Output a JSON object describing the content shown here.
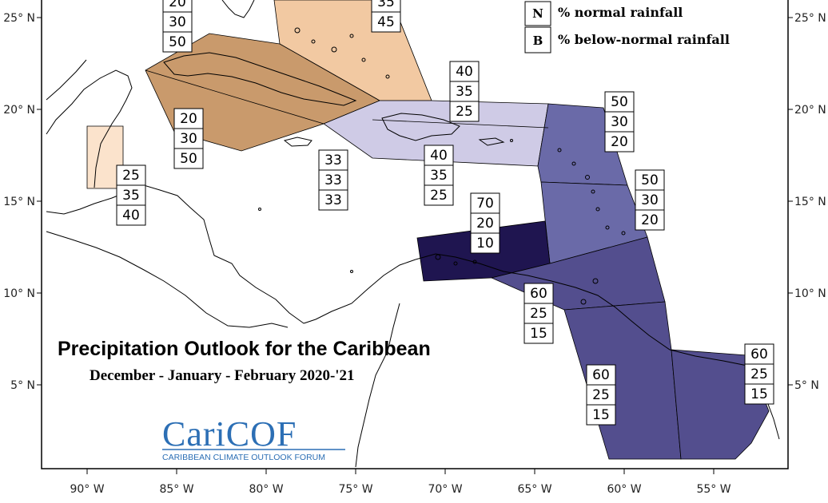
{
  "title": "Precipitation Outlook for the Caribbean",
  "subtitle": "December - January - February 2020-'21",
  "legend": [
    {
      "letter": "N",
      "text": "% normal rainfall"
    },
    {
      "letter": "B",
      "text": "% below-normal rainfall"
    }
  ],
  "logo": {
    "name": "CariCOF",
    "tagline": "CARIBBEAN CLIMATE OUTLOOK FORUM"
  },
  "axes": {
    "lon_labels": [
      "90° W",
      "85° W",
      "80° W",
      "75° W",
      "70° W",
      "65° W",
      "60° W",
      "55° W"
    ],
    "lat_labels": [
      "25° N",
      "20° N",
      "15° N",
      "10° N",
      "5° N"
    ]
  },
  "colors": {
    "tan_light": "#f2c9a2",
    "tan_dark": "#c99a6c",
    "peach_pale": "#fbe3cc",
    "lavender_light": "#cfcbe6",
    "purple_mid": "#6a6aa8",
    "purple_dark": "#534e8e",
    "navy": "#1f1550"
  },
  "probability_boxes": [
    {
      "region": "bahamas-north",
      "values": [
        "20",
        "30",
        "50"
      ]
    },
    {
      "region": "bahamas-east",
      "values": [
        "35",
        "45"
      ]
    },
    {
      "region": "cuba-south",
      "values": [
        "20",
        "30",
        "50"
      ]
    },
    {
      "region": "hispaniola-north",
      "values": [
        "40",
        "35",
        "25"
      ]
    },
    {
      "region": "hispaniola-south",
      "values": [
        "40",
        "35",
        "25"
      ]
    },
    {
      "region": "jamaica",
      "values": [
        "33",
        "33",
        "33"
      ]
    },
    {
      "region": "belize",
      "values": [
        "25",
        "35",
        "40"
      ]
    },
    {
      "region": "leeward-islands",
      "values": [
        "50",
        "30",
        "20"
      ]
    },
    {
      "region": "windward-islands",
      "values": [
        "50",
        "30",
        "20"
      ]
    },
    {
      "region": "abc-islands",
      "values": [
        "70",
        "20",
        "10"
      ]
    },
    {
      "region": "trinidad",
      "values": [
        "60",
        "25",
        "15"
      ]
    },
    {
      "region": "guyana",
      "values": [
        "60",
        "25",
        "15"
      ]
    },
    {
      "region": "french-guiana",
      "values": [
        "60",
        "25",
        "15"
      ]
    }
  ]
}
